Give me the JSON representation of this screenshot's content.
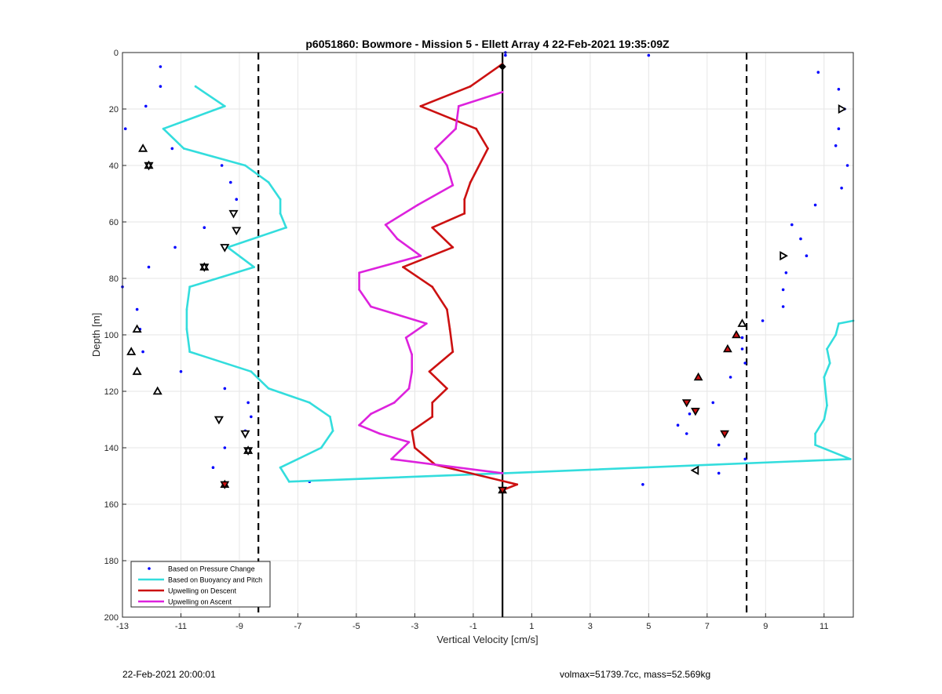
{
  "chart_data": {
    "type": "line",
    "title": "p6051860: Bowmore - Mission 5 - Ellett Array 4 22-Feb-2021 19:35:09Z",
    "xlabel": "Vertical Velocity [cm/s]",
    "ylabel": "Depth [m]",
    "xlim": [
      -13,
      12
    ],
    "ylim": [
      0,
      200
    ],
    "y_reversed": true,
    "xticks": [
      -13,
      -11,
      -9,
      -7,
      -5,
      -3,
      -1,
      1,
      3,
      5,
      7,
      9,
      11
    ],
    "yticks": [
      0,
      20,
      40,
      60,
      80,
      100,
      120,
      140,
      160,
      180,
      200
    ],
    "grid": true,
    "legend_position": "bottom-left",
    "series": [
      {
        "name": "Based on Pressure Change",
        "style": "dots",
        "color": "#0000ff",
        "points": [
          [
            -11.7,
            5
          ],
          [
            -11.7,
            12
          ],
          [
            -12.2,
            19
          ],
          [
            -12.9,
            27
          ],
          [
            -11.3,
            34
          ],
          [
            -9.6,
            40
          ],
          [
            -9.3,
            46
          ],
          [
            -9.1,
            52
          ],
          [
            -9.2,
            57
          ],
          [
            -10.2,
            62
          ],
          [
            -11.2,
            69
          ],
          [
            -12.1,
            76
          ],
          [
            -13,
            83
          ],
          [
            -12.5,
            91
          ],
          [
            -12.4,
            98
          ],
          [
            -12.3,
            106
          ],
          [
            -11,
            113
          ],
          [
            -9.5,
            119
          ],
          [
            -8.7,
            124
          ],
          [
            -8.6,
            129
          ],
          [
            -8.8,
            134
          ],
          [
            -9.5,
            140
          ],
          [
            -9.9,
            147
          ],
          [
            -9.5,
            153
          ],
          [
            -6.6,
            152
          ],
          [
            0.1,
            0
          ],
          [
            0.1,
            1
          ],
          [
            5,
            1
          ],
          [
            10.8,
            7
          ],
          [
            11.5,
            13
          ],
          [
            11.7,
            20
          ],
          [
            11.5,
            27
          ],
          [
            11.4,
            33
          ],
          [
            11.8,
            40
          ],
          [
            11.6,
            48
          ],
          [
            10.7,
            54
          ],
          [
            9.9,
            61
          ],
          [
            10.2,
            66
          ],
          [
            10.4,
            72
          ],
          [
            9.7,
            78
          ],
          [
            9.6,
            84
          ],
          [
            9.6,
            90
          ],
          [
            8.9,
            95
          ],
          [
            8.2,
            101
          ],
          [
            8.2,
            105
          ],
          [
            8.3,
            110
          ],
          [
            7.8,
            115
          ],
          [
            7.2,
            124
          ],
          [
            6.4,
            128
          ],
          [
            6,
            132
          ],
          [
            6.3,
            135
          ],
          [
            7.4,
            139
          ],
          [
            8.3,
            144
          ],
          [
            7.4,
            149
          ],
          [
            4.8,
            153
          ],
          [
            0,
            155
          ]
        ]
      },
      {
        "name": "Based on Buoyancy and Pitch",
        "color": "#33dddd",
        "points": [
          [
            -10.5,
            12
          ],
          [
            -9.5,
            19
          ],
          [
            -11.6,
            27
          ],
          [
            -10.9,
            34
          ],
          [
            -8.8,
            40
          ],
          [
            -8,
            46
          ],
          [
            -7.6,
            52
          ],
          [
            -7.6,
            57
          ],
          [
            -7.4,
            62
          ],
          [
            -9.4,
            69
          ],
          [
            -8.5,
            76
          ],
          [
            -10.7,
            83
          ],
          [
            -10.8,
            91
          ],
          [
            -10.8,
            98
          ],
          [
            -10.7,
            106
          ],
          [
            -8.6,
            113
          ],
          [
            -8,
            119
          ],
          [
            -6.6,
            124
          ],
          [
            -5.9,
            129
          ],
          [
            -5.8,
            134
          ],
          [
            -6.2,
            140
          ],
          [
            -7.6,
            147
          ],
          [
            -7.3,
            152
          ],
          [
            0.1,
            149
          ],
          [
            11.9,
            144
          ],
          [
            10.7,
            139
          ],
          [
            10.7,
            135
          ],
          [
            11,
            130
          ],
          [
            11.1,
            125
          ],
          [
            11,
            115
          ],
          [
            11.2,
            110
          ],
          [
            11.1,
            105
          ],
          [
            11.4,
            100
          ],
          [
            11.5,
            96
          ],
          [
            12,
            95
          ]
        ]
      },
      {
        "name": "Upwelling on Descent",
        "color": "#cc1111",
        "points": [
          [
            0,
            4
          ],
          [
            -1.1,
            12
          ],
          [
            -2.8,
            19
          ],
          [
            -0.9,
            27
          ],
          [
            -0.5,
            34
          ],
          [
            -1.1,
            46
          ],
          [
            -1.3,
            52
          ],
          [
            -1.3,
            57
          ],
          [
            -2.4,
            62
          ],
          [
            -1.7,
            69
          ],
          [
            -3.4,
            76
          ],
          [
            -2.4,
            83
          ],
          [
            -1.9,
            91
          ],
          [
            -1.8,
            98
          ],
          [
            -1.7,
            106
          ],
          [
            -2.5,
            113
          ],
          [
            -1.9,
            119
          ],
          [
            -2.4,
            124
          ],
          [
            -2.4,
            129
          ],
          [
            -3.1,
            134
          ],
          [
            -3,
            140
          ],
          [
            -2.3,
            146
          ],
          [
            0.5,
            153
          ],
          [
            0,
            155
          ]
        ]
      },
      {
        "name": "Upwelling on Ascent",
        "color": "#dd22dd",
        "points": [
          [
            0,
            14
          ],
          [
            -1.5,
            19
          ],
          [
            -1.6,
            27
          ],
          [
            -2.3,
            34
          ],
          [
            -1.9,
            40
          ],
          [
            -1.7,
            47
          ],
          [
            -2.9,
            54
          ],
          [
            -4,
            61
          ],
          [
            -3.6,
            66
          ],
          [
            -2.8,
            72
          ],
          [
            -4.9,
            78
          ],
          [
            -4.9,
            84
          ],
          [
            -4.5,
            90
          ],
          [
            -2.6,
            96
          ],
          [
            -3.3,
            101
          ],
          [
            -3.1,
            107
          ],
          [
            -3.1,
            113
          ],
          [
            -3.2,
            119
          ],
          [
            -3.7,
            124
          ],
          [
            -4.5,
            128
          ],
          [
            -4.9,
            132
          ],
          [
            -4.2,
            135
          ],
          [
            -3.2,
            138
          ],
          [
            -3.8,
            144
          ],
          [
            0,
            149
          ]
        ]
      }
    ],
    "reference_lines": [
      {
        "x": 0,
        "style": "solid",
        "color": "#000000"
      },
      {
        "x": -8.35,
        "style": "dashed",
        "color": "#000000"
      },
      {
        "x": 8.35,
        "style": "dashed",
        "color": "#000000"
      }
    ],
    "markers": {
      "up_triangle": [
        [
          -12.3,
          34
        ],
        [
          -12.5,
          98
        ],
        [
          -12.7,
          106
        ],
        [
          -12.5,
          113
        ],
        [
          -11.8,
          120
        ],
        [
          8.2,
          96
        ]
      ],
      "down_triangle": [
        [
          -9.2,
          57
        ],
        [
          -9.1,
          63
        ],
        [
          -9.5,
          69
        ],
        [
          -9.7,
          130
        ],
        [
          -8.8,
          135
        ]
      ],
      "right_triangle": [
        [
          11.6,
          20
        ],
        [
          9.6,
          72
        ]
      ],
      "left_triangle": [
        [
          6.6,
          148
        ]
      ],
      "star": [
        [
          -12.1,
          40
        ],
        [
          -10.2,
          76
        ],
        [
          -8.7,
          141
        ]
      ],
      "filled_up_red": [
        [
          6.7,
          115
        ],
        [
          7.7,
          105
        ],
        [
          8,
          100
        ]
      ],
      "filled_down_red": [
        [
          6.3,
          124
        ],
        [
          6.6,
          127
        ],
        [
          7.6,
          135
        ]
      ],
      "filled_red_star": [
        [
          -9.5,
          153
        ],
        [
          0,
          155
        ]
      ],
      "diamond_black": [
        [
          0,
          5
        ]
      ]
    }
  },
  "footer": {
    "timestamp": "22-Feb-2021 20:00:01",
    "summary": "volmax=51739.7cc, mass=52.569kg"
  }
}
